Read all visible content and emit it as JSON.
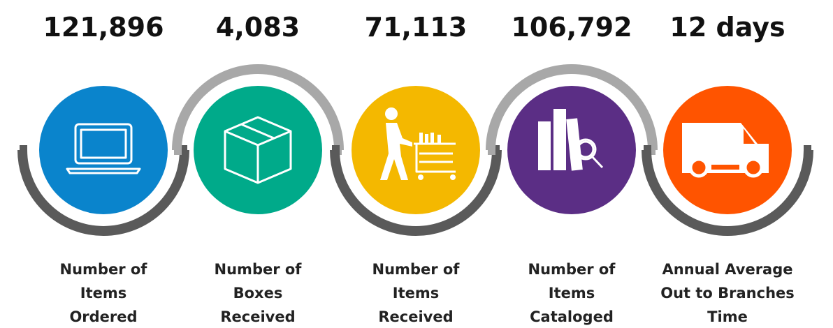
{
  "items": [
    {
      "value": "121,896",
      "label": [
        "Number of",
        "Items",
        "Ordered"
      ]
    },
    {
      "value": "4,083",
      "label": [
        "Number of",
        "Boxes",
        "Received"
      ]
    },
    {
      "value": "71,113",
      "label": [
        "Number of",
        "Items",
        "Received"
      ]
    },
    {
      "value": "106,792",
      "label": [
        "Number of",
        "Items",
        "Cataloged"
      ]
    },
    {
      "value": "12 days",
      "label": [
        "Annual Average",
        "Out to Branches",
        "Time"
      ]
    }
  ]
}
